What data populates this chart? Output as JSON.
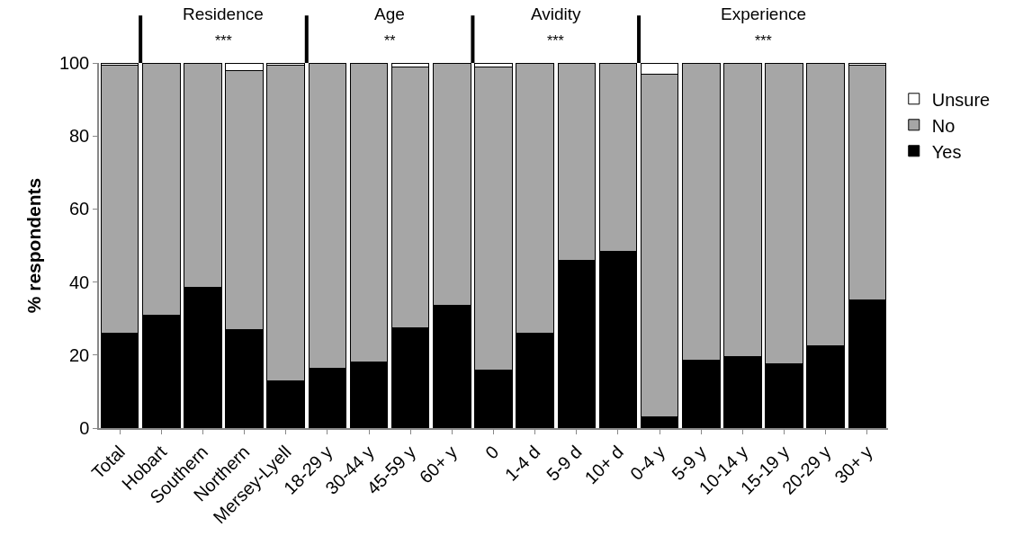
{
  "chart_data": {
    "type": "bar",
    "stacked": true,
    "ylabel": "% respondents",
    "categories": [
      "Total",
      "Hobart",
      "Southern",
      "Northern",
      "Mersey-Lyell",
      "18-29 y",
      "30-44 y",
      "45-59 y",
      "60+ y",
      "0",
      "1-4 d",
      "5-9 d",
      "10+ d",
      "0-4 y",
      "5-9 y",
      "10-14 y",
      "15-19 y",
      "20-29 y",
      "30+ y"
    ],
    "series": [
      {
        "name": "Yes",
        "color": "#000000",
        "values": [
          26,
          31,
          38.5,
          27,
          13,
          16.5,
          18,
          27.5,
          33.5,
          16,
          26,
          46,
          48.5,
          3,
          18.5,
          19.5,
          17.5,
          22.5,
          35
        ]
      },
      {
        "name": "No",
        "color": "#a6a6a6",
        "values": [
          73.5,
          69,
          61.5,
          71,
          86.5,
          83.5,
          82,
          71.5,
          66.5,
          83,
          74,
          54,
          51.5,
          94,
          81.5,
          80.5,
          82.5,
          77.5,
          64.5
        ]
      },
      {
        "name": "Unsure",
        "color": "#ffffff",
        "values": [
          0.5,
          null,
          null,
          2,
          0.5,
          null,
          null,
          1,
          null,
          1,
          null,
          null,
          null,
          3,
          null,
          null,
          null,
          null,
          0.5
        ]
      }
    ],
    "ylim": [
      0,
      100
    ],
    "yticks": [
      0,
      20,
      40,
      60,
      80,
      100
    ],
    "legend": "right",
    "annotations": [
      "Residence",
      "***",
      "Age",
      "**",
      "Avidity",
      "***",
      "Experience",
      "***"
    ]
  }
}
